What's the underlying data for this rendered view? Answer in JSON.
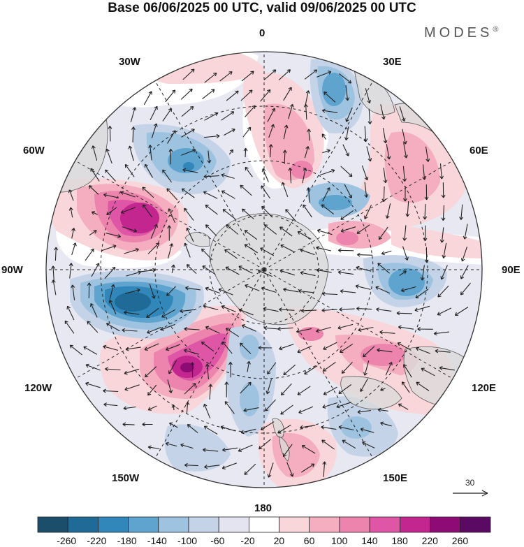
{
  "title": "Base 06/06/2025 00 UTC, valid 09/06/2025 00 UTC",
  "brand": "MODES",
  "brand_mark": "®",
  "longitude_labels": [
    "0",
    "30E",
    "60E",
    "90E",
    "120E",
    "150E",
    "180",
    "150W",
    "120W",
    "90W",
    "60W",
    "30W"
  ],
  "reference_vector_label": "30",
  "colorbar": {
    "ticks": [
      "-260",
      "-220",
      "-180",
      "-140",
      "-100",
      "-60",
      "-20",
      "20",
      "60",
      "100",
      "140",
      "180",
      "220",
      "260"
    ],
    "colors": [
      "#1b4e6b",
      "#1f6a96",
      "#3186ba",
      "#5fa3cf",
      "#9dc3e0",
      "#c5d3e8",
      "#e4e4f0",
      "#ffffff",
      "#f9d6d9",
      "#f4aebf",
      "#ec84ad",
      "#e056a6",
      "#c3268f",
      "#8e0a75",
      "#5a0a63"
    ]
  },
  "colors": {
    "land": "#d9d9d9",
    "coast": "#555555",
    "grid": "#222222",
    "arrow": "#222222"
  }
}
